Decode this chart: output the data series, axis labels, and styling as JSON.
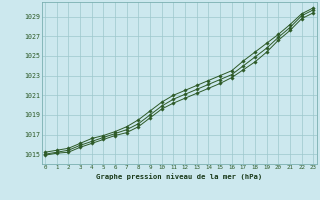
{
  "title": "Graphe pression niveau de la mer (hPa)",
  "xlabel_hours": [
    0,
    1,
    2,
    3,
    4,
    5,
    6,
    7,
    8,
    9,
    10,
    11,
    12,
    13,
    14,
    15,
    16,
    17,
    18,
    19,
    20,
    21,
    22,
    23
  ],
  "ylim": [
    1014.0,
    1030.5
  ],
  "xlim": [
    -0.3,
    23.3
  ],
  "yticks": [
    1015,
    1017,
    1019,
    1021,
    1023,
    1025,
    1027,
    1029
  ],
  "background_color": "#cce8ee",
  "grid_color": "#9dc8cc",
  "line_color": "#2d5a27",
  "series_upper": [
    1015.2,
    1015.4,
    1015.6,
    1016.1,
    1016.6,
    1016.9,
    1017.3,
    1017.8,
    1018.5,
    1019.4,
    1020.3,
    1021.0,
    1021.5,
    1022.0,
    1022.5,
    1023.0,
    1023.5,
    1024.5,
    1025.4,
    1026.3,
    1027.2,
    1028.2,
    1029.3,
    1029.9
  ],
  "series_mid": [
    1015.0,
    1015.2,
    1015.4,
    1015.9,
    1016.3,
    1016.7,
    1017.1,
    1017.5,
    1018.1,
    1019.0,
    1019.9,
    1020.6,
    1021.1,
    1021.6,
    1022.1,
    1022.6,
    1023.1,
    1024.0,
    1024.9,
    1025.8,
    1026.9,
    1027.9,
    1029.1,
    1029.7
  ],
  "series_lower": [
    1014.9,
    1015.1,
    1015.2,
    1015.7,
    1016.1,
    1016.5,
    1016.9,
    1017.2,
    1017.8,
    1018.7,
    1019.6,
    1020.2,
    1020.7,
    1021.2,
    1021.7,
    1022.2,
    1022.8,
    1023.6,
    1024.4,
    1025.4,
    1026.6,
    1027.6,
    1028.8,
    1029.4
  ]
}
